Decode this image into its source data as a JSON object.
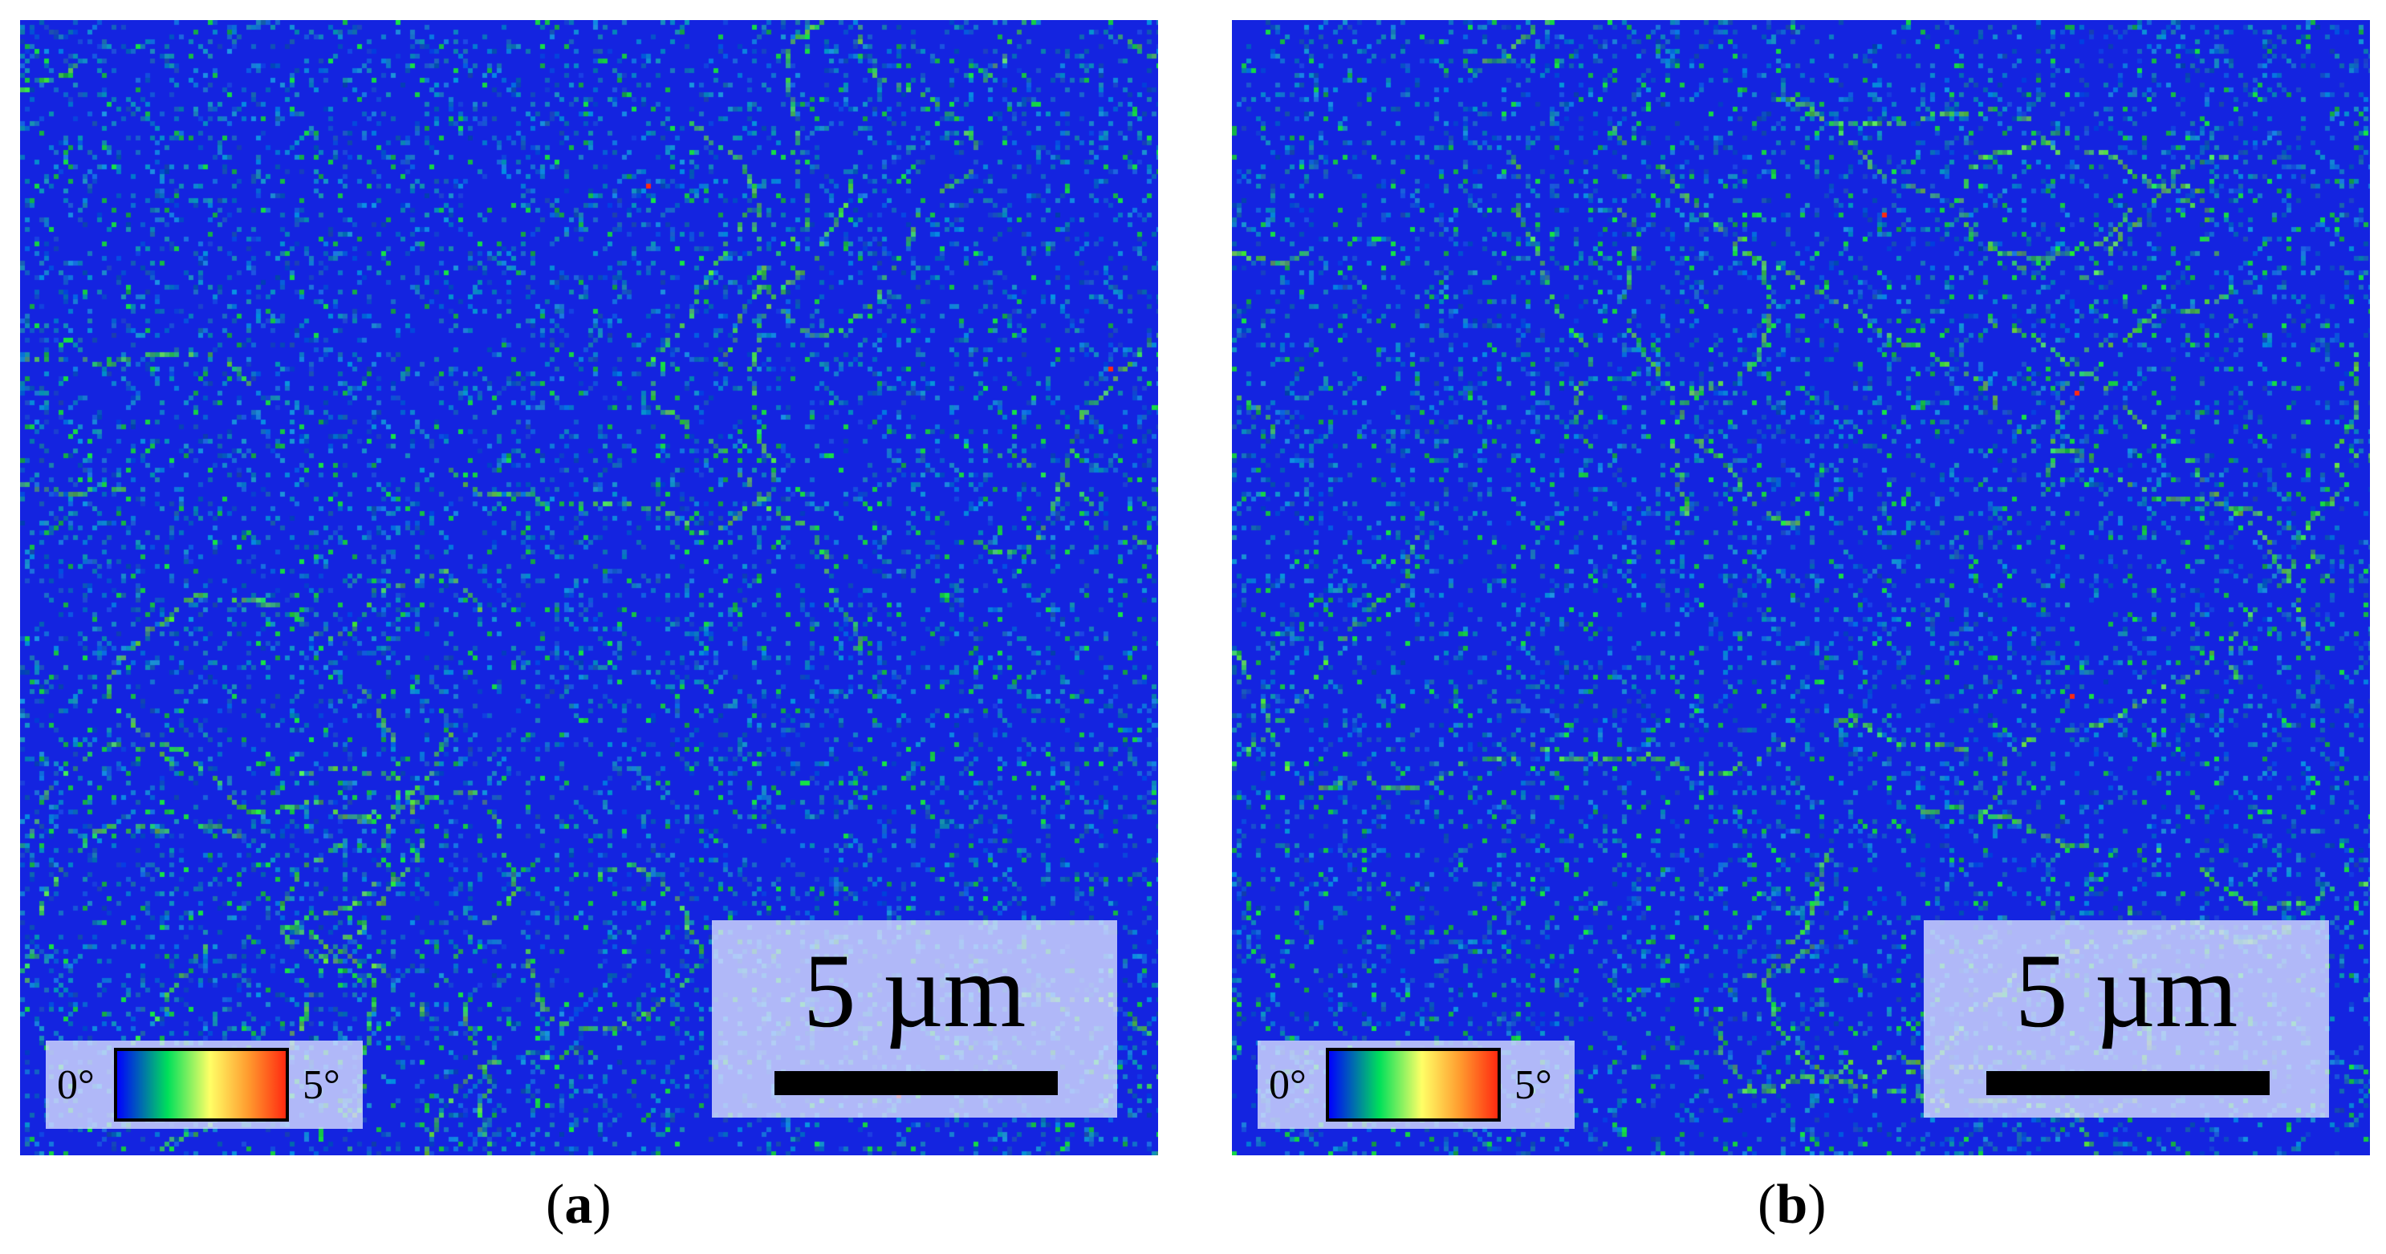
{
  "panels": [
    {
      "id": "a",
      "caption_open": "(",
      "caption_letter": "a",
      "caption_close": ")",
      "scale_bar_label": "5 µm",
      "legend_min": "0°",
      "legend_max": "5°"
    },
    {
      "id": "b",
      "caption_open": "(",
      "caption_letter": "b",
      "caption_close": ")",
      "scale_bar_label": "5 µm",
      "legend_min": "0°",
      "legend_max": "5°"
    }
  ],
  "colors": {
    "map_background": "#1424e0",
    "boundary_green": "#3ddc2a",
    "accent_red": "#ff2a10"
  },
  "colormap": [
    "#0000ff",
    "#00e05a",
    "#ffff66",
    "#ff9a2e",
    "#ff2a10"
  ]
}
